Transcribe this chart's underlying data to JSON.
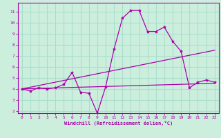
{
  "bg_color": "#cceedd",
  "grid_color": "#aaddcc",
  "line_color": "#aa00aa",
  "marker_color": "#aa00aa",
  "xlabel": "Windchill (Refroidissement éolien,°C)",
  "xlabel_color": "#aa00aa",
  "tick_color": "#aa00aa",
  "spine_color": "#aa00aa",
  "xlim": [
    -0.5,
    23.5
  ],
  "ylim": [
    1.8,
    11.8
  ],
  "yticks": [
    2,
    3,
    4,
    5,
    6,
    7,
    8,
    9,
    10,
    11
  ],
  "xticks": [
    0,
    1,
    2,
    3,
    4,
    5,
    6,
    7,
    8,
    9,
    10,
    11,
    12,
    13,
    14,
    15,
    16,
    17,
    18,
    19,
    20,
    21,
    22,
    23
  ],
  "series1_x": [
    0,
    1,
    2,
    3,
    4,
    5,
    6,
    7,
    8,
    9,
    10,
    11,
    12,
    13,
    14,
    15,
    16,
    17,
    18,
    19,
    20,
    21,
    22,
    23
  ],
  "series1_y": [
    4.0,
    3.8,
    4.1,
    4.0,
    4.1,
    4.4,
    5.5,
    3.7,
    3.6,
    1.8,
    4.2,
    7.6,
    10.4,
    11.1,
    11.1,
    9.2,
    9.2,
    9.6,
    8.3,
    7.4,
    4.1,
    4.6,
    4.8,
    4.6
  ],
  "series2_x": [
    0,
    23
  ],
  "series2_y": [
    4.0,
    4.5
  ],
  "series3_x": [
    0,
    23
  ],
  "series3_y": [
    4.0,
    7.5
  ]
}
